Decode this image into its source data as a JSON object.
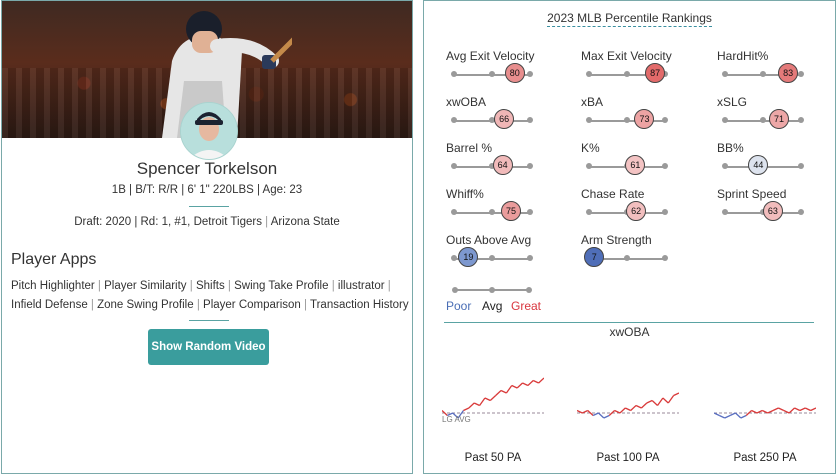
{
  "player": {
    "name": "Spencer Torkelson",
    "bio": "1B | B/T: R/R | 6' 1\" 220LBS | Age: 23",
    "draft_prefix": "Draft: 2020 | Rd: 1, #1, Detroit Tigers",
    "school": "Arizona State"
  },
  "apps": {
    "title": "Player Apps",
    "items": [
      "Pitch Highlighter",
      "Player Similarity",
      "Shifts",
      "Swing Take Profile",
      "illustrator",
      "Infield Defense",
      "Zone Swing Profile",
      "Player Comparison",
      "Transaction History"
    ],
    "button": "Show Random Video"
  },
  "rankings": {
    "title": "2023 MLB Percentile Rankings",
    "metrics": [
      {
        "label": "Avg Exit Velocity",
        "value": "80",
        "pct": 80,
        "color": "#e88e8e"
      },
      {
        "label": "Max Exit Velocity",
        "value": "87",
        "pct": 87,
        "color": "#e26a6a"
      },
      {
        "label": "HardHit%",
        "value": "83",
        "pct": 83,
        "color": "#e47a7a"
      },
      {
        "label": "xwOBA",
        "value": "66",
        "pct": 66,
        "color": "#f0b6b6"
      },
      {
        "label": "xBA",
        "value": "73",
        "pct": 73,
        "color": "#eda3a3"
      },
      {
        "label": "xSLG",
        "value": "71",
        "pct": 71,
        "color": "#eda7a7"
      },
      {
        "label": "Barrel %",
        "value": "64",
        "pct": 64,
        "color": "#f1baba"
      },
      {
        "label": "K%",
        "value": "61",
        "pct": 61,
        "color": "#f3c3c3"
      },
      {
        "label": "BB%",
        "value": "44",
        "pct": 44,
        "color": "#dde3ee"
      },
      {
        "label": "Whiff%",
        "value": "75",
        "pct": 75,
        "color": "#ea9c9c"
      },
      {
        "label": "Chase Rate",
        "value": "62",
        "pct": 62,
        "color": "#f2bfbf"
      },
      {
        "label": "Sprint Speed",
        "value": "63",
        "pct": 63,
        "color": "#f1bcbc"
      },
      {
        "label": "Outs Above Avg",
        "value": "19",
        "pct": 19,
        "color": "#7d98cf"
      },
      {
        "label": "Arm Strength",
        "value": "7",
        "pct": 7,
        "color": "#4f6eb8"
      }
    ],
    "legend": {
      "poor": "Poor",
      "avg": "Avg",
      "great": "Great",
      "poor_color": "#4a6eb5",
      "great_color": "#d9363e"
    },
    "xwoba_title": "xwOBA",
    "lg_avg": "LG AVG",
    "windows": [
      "Past 50 PA",
      "Past 100 PA",
      "Past 250 PA"
    ]
  },
  "chart_data": [
    {
      "type": "line",
      "title": "Past 50 PA",
      "series": [
        {
          "values": [
            0.33,
            0.31,
            0.32,
            0.3,
            0.33,
            0.34,
            0.36,
            0.35,
            0.38,
            0.37,
            0.39,
            0.41,
            0.4,
            0.43,
            0.42,
            0.44,
            0.43,
            0.45,
            0.44,
            0.46
          ]
        }
      ],
      "reference": 0.32
    },
    {
      "type": "line",
      "title": "Past 100 PA",
      "series": [
        {
          "values": [
            0.33,
            0.32,
            0.33,
            0.31,
            0.32,
            0.3,
            0.31,
            0.33,
            0.32,
            0.34,
            0.33,
            0.35,
            0.34,
            0.36,
            0.37,
            0.35,
            0.38,
            0.36,
            0.39,
            0.4
          ]
        }
      ],
      "reference": 0.32
    },
    {
      "type": "line",
      "title": "Past 250 PA",
      "series": [
        {
          "values": [
            0.32,
            0.31,
            0.3,
            0.31,
            0.32,
            0.3,
            0.31,
            0.33,
            0.32,
            0.33,
            0.32,
            0.33,
            0.34,
            0.33,
            0.32,
            0.34,
            0.33,
            0.34,
            0.33,
            0.34
          ]
        }
      ],
      "reference": 0.32
    }
  ]
}
